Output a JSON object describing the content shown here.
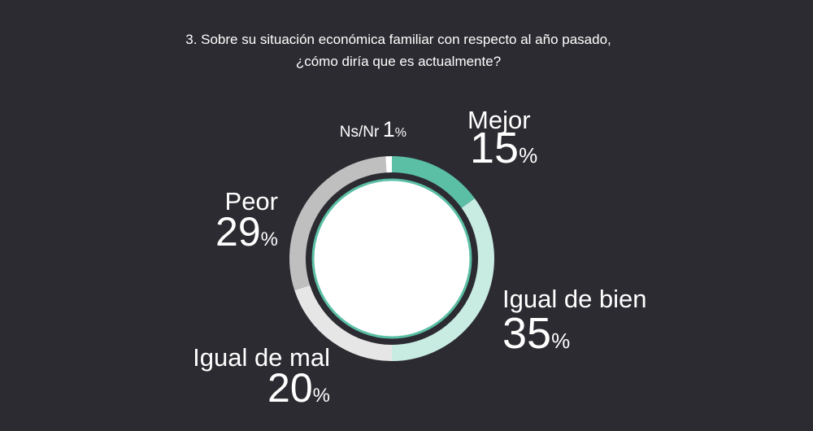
{
  "chart_data": {
    "type": "donut",
    "title": [
      "3. Sobre su situación económica familiar con respecto al año pasado,",
      "¿cómo diría que es actualmente?"
    ],
    "categories": [
      "Mejor",
      "Igual de bien",
      "Igual de mal",
      "Peor",
      "Ns/Nr"
    ],
    "values": [
      15,
      35,
      20,
      29,
      1
    ],
    "value_labels": [
      "15%",
      "35%",
      "20%",
      "29%",
      "1%"
    ],
    "colors": [
      "#5bbfa5",
      "#c8ebe2",
      "#e6e6e6",
      "#bfbfbf",
      "#ffffff"
    ]
  }
}
